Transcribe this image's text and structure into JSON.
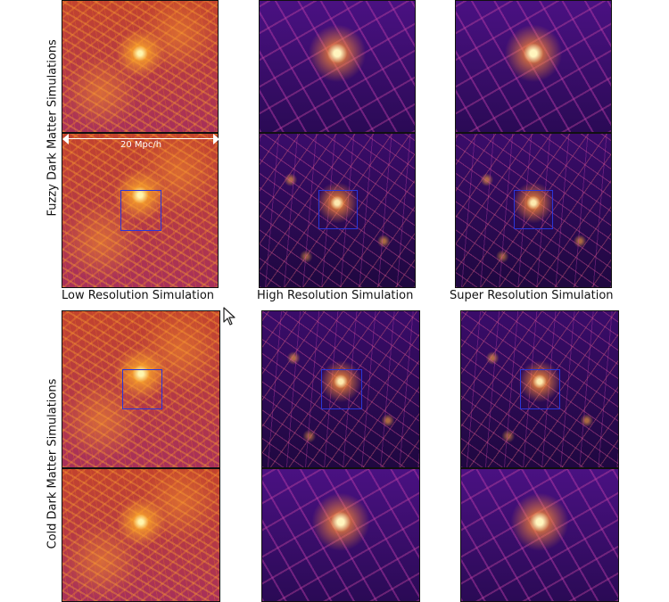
{
  "rows": {
    "fuzzy": {
      "label": "Fuzzy Dark Matter Simulations"
    },
    "cold": {
      "label": "Cold Dark Matter Simulations"
    }
  },
  "columns": [
    {
      "label": "Low Resolution Simulation"
    },
    {
      "label": "High Resolution Simulation"
    },
    {
      "label": "Super Resolution Simulation"
    }
  ],
  "scale_bar": {
    "text": "20 Mpc/h"
  },
  "colors": {
    "zoom_box": "#2a36d8",
    "lowres_palette": "inferno-orange",
    "highres_palette": "plasma-purple"
  }
}
